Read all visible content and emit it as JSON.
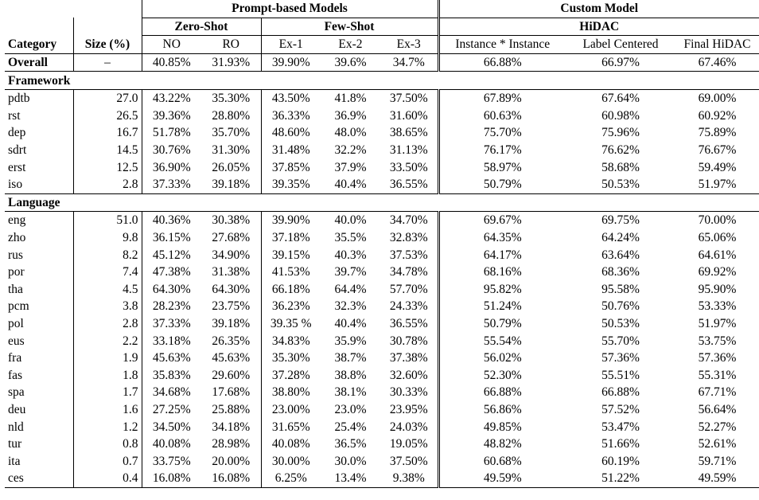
{
  "header": {
    "category": "Category",
    "size": "Size (%)",
    "prompt_group": "Prompt-based Models",
    "custom_group": "Custom Model",
    "zero_shot": "Zero-Shot",
    "few_shot": "Few-Shot",
    "hidac": "HiDAC",
    "cols": [
      "NO",
      "RO",
      "Ex-1",
      "Ex-2",
      "Ex-3",
      "Instance * Instance",
      "Label Centered",
      "Final HiDAC"
    ]
  },
  "overall": {
    "category": "Overall",
    "size": "–",
    "values": [
      "40.85%",
      "31.93%",
      "39.90%",
      "39.6%",
      "34.7%",
      "66.88%",
      "66.97%",
      "67.46%"
    ]
  },
  "sections": [
    {
      "title": "Framework",
      "rows": [
        {
          "category": "pdtb",
          "size": "27.0",
          "values": [
            "43.22%",
            "35.30%",
            "43.50%",
            "41.8%",
            "37.50%",
            "67.89%",
            "67.64%",
            "69.00%"
          ]
        },
        {
          "category": "rst",
          "size": "26.5",
          "values": [
            "39.36%",
            "28.80%",
            "36.33%",
            "36.9%",
            "31.60%",
            "60.63%",
            "60.98%",
            "60.92%"
          ]
        },
        {
          "category": "dep",
          "size": "16.7",
          "values": [
            "51.78%",
            "35.70%",
            "48.60%",
            "48.0%",
            "38.65%",
            "75.70%",
            "75.96%",
            "75.89%"
          ]
        },
        {
          "category": "sdrt",
          "size": "14.5",
          "values": [
            "30.76%",
            "31.30%",
            "31.48%",
            "32.2%",
            "31.13%",
            "76.17%",
            "76.62%",
            "76.67%"
          ]
        },
        {
          "category": "erst",
          "size": "12.5",
          "values": [
            "36.90%",
            "26.05%",
            "37.85%",
            "37.9%",
            "33.50%",
            "58.97%",
            "58.68%",
            "59.49%"
          ]
        },
        {
          "category": "iso",
          "size": "2.8",
          "values": [
            "37.33%",
            "39.18%",
            "39.35%",
            "40.4%",
            "36.55%",
            "50.79%",
            "50.53%",
            "51.97%"
          ]
        }
      ]
    },
    {
      "title": "Language",
      "rows": [
        {
          "category": "eng",
          "size": "51.0",
          "values": [
            "40.36%",
            "30.38%",
            "39.90%",
            "40.0%",
            "34.70%",
            "69.67%",
            "69.75%",
            "70.00%"
          ]
        },
        {
          "category": "zho",
          "size": "9.8",
          "values": [
            "36.15%",
            "27.68%",
            "37.18%",
            "35.5%",
            "32.83%",
            "64.35%",
            "64.24%",
            "65.06%"
          ]
        },
        {
          "category": "rus",
          "size": "8.2",
          "values": [
            "45.12%",
            "34.90%",
            "39.15%",
            "40.3%",
            "37.53%",
            "64.17%",
            "63.64%",
            "64.61%"
          ]
        },
        {
          "category": "por",
          "size": "7.4",
          "values": [
            "47.38%",
            "31.38%",
            "41.53%",
            "39.7%",
            "34.78%",
            "68.16%",
            "68.36%",
            "69.92%"
          ]
        },
        {
          "category": "tha",
          "size": "4.5",
          "values": [
            "64.30%",
            "64.30%",
            "66.18%",
            "64.4%",
            "57.70%",
            "95.82%",
            "95.58%",
            "95.90%"
          ]
        },
        {
          "category": "pcm",
          "size": "3.8",
          "values": [
            "28.23%",
            "23.75%",
            "36.23%",
            "32.3%",
            "24.33%",
            "51.24%",
            "50.76%",
            "53.33%"
          ]
        },
        {
          "category": "pol",
          "size": "2.8",
          "values": [
            "37.33%",
            "39.18%",
            "39.35 %",
            "40.4%",
            "36.55%",
            "50.79%",
            "50.53%",
            "51.97%"
          ]
        },
        {
          "category": "eus",
          "size": "2.2",
          "values": [
            "33.18%",
            "26.35%",
            "34.83%",
            "35.9%",
            "30.78%",
            "55.54%",
            "55.70%",
            "53.75%"
          ]
        },
        {
          "category": "fra",
          "size": "1.9",
          "values": [
            "45.63%",
            "45.63%",
            "35.30%",
            "38.7%",
            "37.38%",
            "56.02%",
            "57.36%",
            "57.36%"
          ]
        },
        {
          "category": "fas",
          "size": "1.8",
          "values": [
            "35.83%",
            "29.60%",
            "37.28%",
            "38.8%",
            "32.60%",
            "52.30%",
            "55.51%",
            "55.31%"
          ]
        },
        {
          "category": "spa",
          "size": "1.7",
          "values": [
            "34.68%",
            "17.68%",
            "38.80%",
            "38.1%",
            "30.33%",
            "66.88%",
            "66.88%",
            "67.71%"
          ]
        },
        {
          "category": "deu",
          "size": "1.6",
          "values": [
            "27.25%",
            "25.88%",
            "23.00%",
            "23.0%",
            "23.95%",
            "56.86%",
            "57.52%",
            "56.64%"
          ]
        },
        {
          "category": "nld",
          "size": "1.2",
          "values": [
            "34.50%",
            "34.18%",
            "31.65%",
            "25.4%",
            "24.03%",
            "49.85%",
            "53.47%",
            "52.27%"
          ]
        },
        {
          "category": "tur",
          "size": "0.8",
          "values": [
            "40.08%",
            "28.98%",
            "40.08%",
            "36.5%",
            "19.05%",
            "48.82%",
            "51.66%",
            "52.61%"
          ]
        },
        {
          "category": "ita",
          "size": "0.7",
          "values": [
            "33.75%",
            "20.00%",
            "30.00%",
            "30.0%",
            "37.50%",
            "60.68%",
            "60.19%",
            "59.71%"
          ]
        },
        {
          "category": "ces",
          "size": "0.4",
          "values": [
            "16.08%",
            "16.08%",
            "6.25%",
            "13.4%",
            "9.38%",
            "49.59%",
            "51.22%",
            "49.59%"
          ]
        }
      ]
    }
  ]
}
